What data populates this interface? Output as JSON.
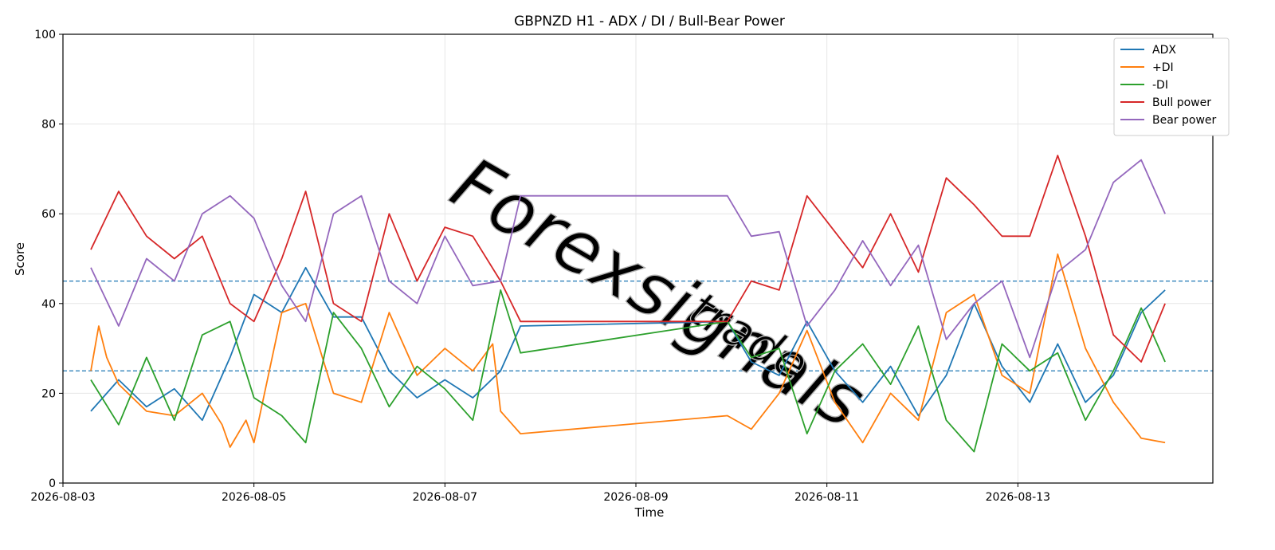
{
  "chart_data": {
    "type": "line",
    "title": "GBPNZD H1 - ADX / DI / Bull-Bear Power",
    "xlabel": "Time",
    "ylabel": "Score",
    "ylim": [
      0,
      100
    ],
    "yticks": [
      0,
      20,
      40,
      60,
      80,
      100
    ],
    "xlim": [
      "2026-08-03T00:00",
      "2026-08-15T01:00"
    ],
    "xticks": [
      "2026-08-03",
      "2026-08-05",
      "2026-08-07",
      "2026-08-09",
      "2026-08-11",
      "2026-08-13"
    ],
    "grid": true,
    "legend_position": "top-right",
    "reference_lines": [
      45,
      25
    ],
    "reference_line_color": "#1f77b4",
    "series": [
      {
        "name": "ADX",
        "color": "#1f77b4",
        "x": [
          "2026-08-03T07:00",
          "2026-08-03T14:00",
          "2026-08-03T21:00",
          "2026-08-04T04:00",
          "2026-08-04T11:00",
          "2026-08-04T18:00",
          "2026-08-05T00:00",
          "2026-08-05T07:00",
          "2026-08-05T13:00",
          "2026-08-05T20:00",
          "2026-08-06T03:00",
          "2026-08-06T10:00",
          "2026-08-06T17:00",
          "2026-08-07T00:00",
          "2026-08-07T07:00",
          "2026-08-07T14:00",
          "2026-08-07T19:00",
          "2026-08-09T23:00",
          "2026-08-10T05:00",
          "2026-08-10T12:00",
          "2026-08-10T19:00",
          "2026-08-11T02:00",
          "2026-08-11T09:00",
          "2026-08-11T16:00",
          "2026-08-11T23:00",
          "2026-08-12T06:00",
          "2026-08-12T13:00",
          "2026-08-12T20:00",
          "2026-08-13T03:00",
          "2026-08-13T10:00",
          "2026-08-13T17:00",
          "2026-08-14T00:00",
          "2026-08-14T07:00",
          "2026-08-14T13:00"
        ],
        "values": [
          16,
          23,
          17,
          21,
          14,
          28,
          42,
          38,
          48,
          37,
          37,
          25,
          19,
          23,
          19,
          25,
          35,
          36,
          27,
          24,
          36,
          25,
          18,
          26,
          15,
          24,
          40,
          26,
          18,
          31,
          18,
          24,
          38,
          43
        ]
      },
      {
        "name": "+DI",
        "color": "#ff7f0e",
        "x": [
          "2026-08-03T07:00",
          "2026-08-03T09:00",
          "2026-08-03T11:00",
          "2026-08-03T14:00",
          "2026-08-03T21:00",
          "2026-08-04T04:00",
          "2026-08-04T11:00",
          "2026-08-04T16:00",
          "2026-08-04T18:00",
          "2026-08-04T22:00",
          "2026-08-05T00:00",
          "2026-08-05T07:00",
          "2026-08-05T13:00",
          "2026-08-05T20:00",
          "2026-08-06T03:00",
          "2026-08-06T10:00",
          "2026-08-06T17:00",
          "2026-08-07T00:00",
          "2026-08-07T07:00",
          "2026-08-07T12:00",
          "2026-08-07T14:00",
          "2026-08-07T19:00",
          "2026-08-09T23:00",
          "2026-08-10T05:00",
          "2026-08-10T12:00",
          "2026-08-10T19:00",
          "2026-08-11T02:00",
          "2026-08-11T09:00",
          "2026-08-11T16:00",
          "2026-08-11T23:00",
          "2026-08-12T06:00",
          "2026-08-12T13:00",
          "2026-08-12T20:00",
          "2026-08-13T03:00",
          "2026-08-13T10:00",
          "2026-08-13T17:00",
          "2026-08-14T00:00",
          "2026-08-14T07:00",
          "2026-08-14T13:00"
        ],
        "values": [
          25,
          35,
          28,
          22,
          16,
          15,
          20,
          13,
          8,
          14,
          9,
          38,
          40,
          20,
          18,
          38,
          24,
          30,
          25,
          31,
          16,
          11,
          15,
          12,
          20,
          34,
          18,
          9,
          20,
          14,
          38,
          42,
          24,
          20,
          51,
          30,
          18,
          10,
          9
        ]
      },
      {
        "name": "-DI",
        "color": "#2ca02c",
        "x": [
          "2026-08-03T07:00",
          "2026-08-03T14:00",
          "2026-08-03T21:00",
          "2026-08-04T04:00",
          "2026-08-04T11:00",
          "2026-08-04T18:00",
          "2026-08-05T00:00",
          "2026-08-05T07:00",
          "2026-08-05T13:00",
          "2026-08-05T20:00",
          "2026-08-06T03:00",
          "2026-08-06T10:00",
          "2026-08-06T17:00",
          "2026-08-07T00:00",
          "2026-08-07T07:00",
          "2026-08-07T14:00",
          "2026-08-07T19:00",
          "2026-08-09T23:00",
          "2026-08-10T05:00",
          "2026-08-10T12:00",
          "2026-08-10T19:00",
          "2026-08-11T02:00",
          "2026-08-11T09:00",
          "2026-08-11T16:00",
          "2026-08-11T23:00",
          "2026-08-12T06:00",
          "2026-08-12T13:00",
          "2026-08-12T20:00",
          "2026-08-13T03:00",
          "2026-08-13T10:00",
          "2026-08-13T17:00",
          "2026-08-14T00:00",
          "2026-08-14T07:00",
          "2026-08-14T13:00"
        ],
        "values": [
          23,
          13,
          28,
          14,
          33,
          36,
          19,
          15,
          9,
          38,
          30,
          17,
          26,
          21,
          14,
          43,
          29,
          36,
          28,
          30,
          11,
          25,
          31,
          22,
          35,
          14,
          7,
          31,
          25,
          29,
          14,
          25,
          39,
          27
        ]
      },
      {
        "name": "Bull power",
        "color": "#d62728",
        "x": [
          "2026-08-03T07:00",
          "2026-08-03T14:00",
          "2026-08-03T21:00",
          "2026-08-04T04:00",
          "2026-08-04T11:00",
          "2026-08-04T18:00",
          "2026-08-05T00:00",
          "2026-08-05T07:00",
          "2026-08-05T13:00",
          "2026-08-05T20:00",
          "2026-08-06T03:00",
          "2026-08-06T10:00",
          "2026-08-06T17:00",
          "2026-08-07T00:00",
          "2026-08-07T07:00",
          "2026-08-07T14:00",
          "2026-08-07T19:00",
          "2026-08-09T23:00",
          "2026-08-10T05:00",
          "2026-08-10T12:00",
          "2026-08-10T19:00",
          "2026-08-11T02:00",
          "2026-08-11T09:00",
          "2026-08-11T16:00",
          "2026-08-11T23:00",
          "2026-08-12T06:00",
          "2026-08-12T13:00",
          "2026-08-12T20:00",
          "2026-08-13T03:00",
          "2026-08-13T10:00",
          "2026-08-13T17:00",
          "2026-08-14T00:00",
          "2026-08-14T07:00",
          "2026-08-14T13:00"
        ],
        "values": [
          52,
          65,
          55,
          50,
          55,
          40,
          36,
          50,
          65,
          40,
          36,
          60,
          45,
          57,
          55,
          45,
          36,
          36,
          45,
          43,
          64,
          56,
          48,
          60,
          47,
          68,
          62,
          55,
          55,
          73,
          55,
          33,
          27,
          40
        ]
      },
      {
        "name": "Bear power",
        "color": "#9467bd",
        "x": [
          "2026-08-03T07:00",
          "2026-08-03T14:00",
          "2026-08-03T21:00",
          "2026-08-04T04:00",
          "2026-08-04T11:00",
          "2026-08-04T18:00",
          "2026-08-05T00:00",
          "2026-08-05T07:00",
          "2026-08-05T13:00",
          "2026-08-05T20:00",
          "2026-08-06T03:00",
          "2026-08-06T10:00",
          "2026-08-06T17:00",
          "2026-08-07T00:00",
          "2026-08-07T07:00",
          "2026-08-07T14:00",
          "2026-08-07T19:00",
          "2026-08-09T23:00",
          "2026-08-10T05:00",
          "2026-08-10T12:00",
          "2026-08-10T19:00",
          "2026-08-11T02:00",
          "2026-08-11T09:00",
          "2026-08-11T16:00",
          "2026-08-11T23:00",
          "2026-08-12T06:00",
          "2026-08-12T13:00",
          "2026-08-12T20:00",
          "2026-08-13T03:00",
          "2026-08-13T10:00",
          "2026-08-13T17:00",
          "2026-08-14T00:00",
          "2026-08-14T07:00",
          "2026-08-14T13:00"
        ],
        "values": [
          48,
          35,
          50,
          45,
          60,
          64,
          59,
          44,
          36,
          60,
          64,
          45,
          40,
          55,
          44,
          45,
          64,
          64,
          55,
          56,
          35,
          43,
          54,
          44,
          53,
          32,
          40,
          45,
          28,
          47,
          52,
          67,
          72,
          60
        ]
      }
    ]
  },
  "watermark": {
    "text": "Forexsignals",
    "sub": "trade"
  }
}
